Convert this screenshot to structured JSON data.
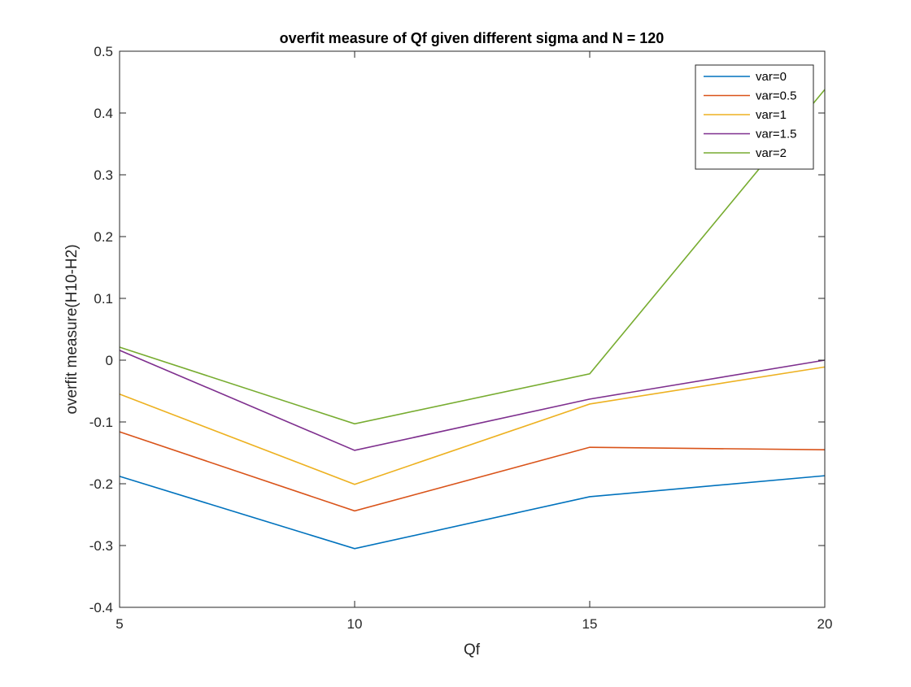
{
  "chart_data": {
    "type": "line",
    "title": "overfit measure of Qf given different sigma and N = 120",
    "xlabel": "Qf",
    "ylabel": "overfit measure(H10-H2)",
    "x": [
      5,
      10,
      15,
      20
    ],
    "xlim": [
      5,
      20
    ],
    "ylim": [
      -0.4,
      0.5
    ],
    "xticks": [
      "5",
      "10",
      "15",
      "20"
    ],
    "yticks": [
      "-0.4",
      "-0.3",
      "-0.2",
      "-0.1",
      "0",
      "0.1",
      "0.2",
      "0.3",
      "0.4",
      "0.5"
    ],
    "xtick_values": [
      5,
      10,
      15,
      20
    ],
    "ytick_values": [
      -0.4,
      -0.3,
      -0.2,
      -0.1,
      0,
      0.1,
      0.2,
      0.3,
      0.4,
      0.5
    ],
    "grid": false,
    "legend_position": "top-right",
    "series": [
      {
        "name": "var=0",
        "color": "#0072BD",
        "values": [
          -0.188,
          -0.305,
          -0.221,
          -0.187
        ]
      },
      {
        "name": "var=0.5",
        "color": "#D95319",
        "values": [
          -0.116,
          -0.244,
          -0.141,
          -0.145
        ]
      },
      {
        "name": "var=1",
        "color": "#EDB120",
        "values": [
          -0.055,
          -0.201,
          -0.071,
          -0.011
        ]
      },
      {
        "name": "var=1.5",
        "color": "#7E2F8E",
        "values": [
          0.016,
          -0.146,
          -0.063,
          0.0
        ]
      },
      {
        "name": "var=2",
        "color": "#77AC30",
        "values": [
          0.021,
          -0.103,
          -0.022,
          0.438
        ]
      }
    ]
  }
}
